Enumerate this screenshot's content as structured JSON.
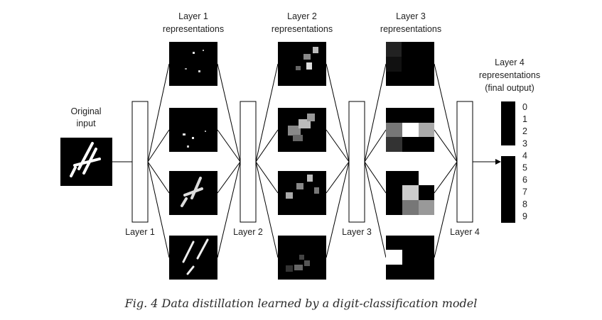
{
  "input_label": [
    "Original",
    "input"
  ],
  "layer_titles": [
    [
      "Layer 1",
      "representations"
    ],
    [
      "Layer 2",
      "representations"
    ],
    [
      "Layer 3",
      "representations"
    ],
    [
      "Layer 4",
      "representations",
      "(final output)"
    ]
  ],
  "layer_labels": [
    "Layer 1",
    "Layer 2",
    "Layer 3",
    "Layer 4"
  ],
  "output_digits": [
    "0",
    "1",
    "2",
    "3",
    "4",
    "5",
    "6",
    "7",
    "8",
    "9"
  ],
  "active_output_digit": "4",
  "caption": "Fig. 4 Data distillation learned by a digit-classification model",
  "colors": {
    "line": "#000000",
    "box_fill": "#ffffff",
    "tile": "#000000"
  }
}
